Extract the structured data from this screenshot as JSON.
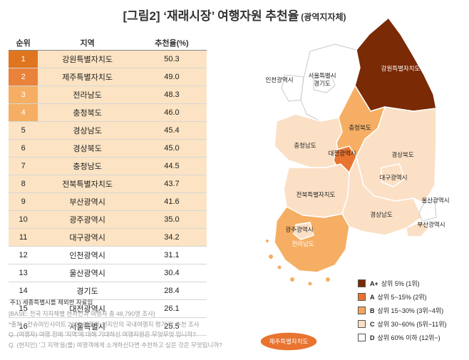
{
  "title": {
    "main": "[그림2] ‘재래시장’ 여행자원 추천율",
    "sub": "(광역지자체)"
  },
  "table": {
    "headers": [
      "순위",
      "지역",
      "추천율(%)"
    ],
    "rows": [
      {
        "rank": "1",
        "region": "강원특별자치도",
        "value": "50.3",
        "grade": "A+"
      },
      {
        "rank": "2",
        "region": "제주특별자치도",
        "value": "49.0",
        "grade": "A"
      },
      {
        "rank": "3",
        "region": "전라남도",
        "value": "48.3",
        "grade": "B"
      },
      {
        "rank": "4",
        "region": "충청북도",
        "value": "46.0",
        "grade": "B"
      },
      {
        "rank": "5",
        "region": "경상남도",
        "value": "45.4",
        "grade": "C"
      },
      {
        "rank": "6",
        "region": "경상북도",
        "value": "45.0",
        "grade": "C"
      },
      {
        "rank": "7",
        "region": "충청남도",
        "value": "44.5",
        "grade": "C"
      },
      {
        "rank": "8",
        "region": "전북특별자치도",
        "value": "43.7",
        "grade": "C"
      },
      {
        "rank": "9",
        "region": "부산광역시",
        "value": "41.6",
        "grade": "C"
      },
      {
        "rank": "10",
        "region": "광주광역시",
        "value": "35.0",
        "grade": "C"
      },
      {
        "rank": "11",
        "region": "대구광역시",
        "value": "34.2",
        "grade": "C"
      },
      {
        "rank": "12",
        "region": "인천광역시",
        "value": "31.1",
        "grade": "D"
      },
      {
        "rank": "13",
        "region": "울산광역시",
        "value": "30.4",
        "grade": "D"
      },
      {
        "rank": "14",
        "region": "경기도",
        "value": "28.4",
        "grade": "D"
      },
      {
        "rank": "15",
        "region": "대전광역시",
        "value": "26.1",
        "grade": "D"
      },
      {
        "rank": "16",
        "region": "서울특별시",
        "value": "25.5",
        "grade": "D"
      }
    ]
  },
  "footnote": "주1) 세종특별시를 제외한 자료임",
  "source_lines": [
    "[BASE: 전국 지자체별 현지인과 여행자 총 48,790명 조사]",
    "*출처 : 컨슈머인사이트 2025 여행자·현지인의 국내여행지 평가 및 추천 조사",
    "Q. (여행자) 여행 전에 '지역'에 대해 기대하신 여행자원은 무엇무엇 입니까?",
    "Q. (현지인) '그 지역'을(를) 여행객에게 소개하신다면 추천하고 싶은 것은 무엇입니까?"
  ],
  "legend": [
    {
      "grade": "A+",
      "label": "상위 5% (1위)",
      "color": "#7a2a05"
    },
    {
      "grade": "A",
      "label": "상위 5~15% (2위)",
      "color": "#e8742f"
    },
    {
      "grade": "B",
      "label": "상위 15~30% (3위~4위)",
      "color": "#f4a460"
    },
    {
      "grade": "C",
      "label": "상위 30~60% (5위~11위)",
      "color": "#fbe0c6"
    },
    {
      "grade": "D",
      "label": "상위 60% 이하 (12위~)",
      "color": "#ffffff"
    }
  ],
  "row_colors": {
    "A+": "#e0751f",
    "A": "#e9823a",
    "B": "#f5ae63",
    "C": "#fbe3c3",
    "D": "#ffffff"
  },
  "rank_text_colors": {
    "A+": "#ffffff",
    "A": "#ffffff",
    "B": "#ffffff",
    "C": "#222222",
    "D": "#222222"
  },
  "map_labels": {
    "seoul": "서울특별시",
    "gyeonggi": "경기도",
    "incheon": "인천광역시",
    "gangwon": "강원특별자치도",
    "chungbuk": "충청북도",
    "chungnam": "충청남도",
    "daejeon": "대전광역시",
    "gyeongbuk": "경상북도",
    "daegu": "대구광역시",
    "jeonbuk": "전북특별자치도",
    "ulsan": "울산광역시",
    "gyeongnam": "경상남도",
    "busan": "부산광역시",
    "gwangju": "광주광역시",
    "jeonnam": "전라남도",
    "jeju": "제주특별자치도"
  },
  "chart_data": {
    "type": "table",
    "title": "[그림2] ‘재래시장’ 여행자원 추천율 (광역지자체)",
    "columns": [
      "순위",
      "지역",
      "추천율(%)"
    ],
    "categories": [
      "강원특별자치도",
      "제주특별자치도",
      "전라남도",
      "충청북도",
      "경상남도",
      "경상북도",
      "충청남도",
      "전북특별자치도",
      "부산광역시",
      "광주광역시",
      "대구광역시",
      "인천광역시",
      "울산광역시",
      "경기도",
      "대전광역시",
      "서울특별시"
    ],
    "values": [
      50.3,
      49.0,
      48.3,
      46.0,
      45.4,
      45.0,
      44.5,
      43.7,
      41.6,
      35.0,
      34.2,
      31.1,
      30.4,
      28.4,
      26.1,
      25.5
    ],
    "grades": [
      "A+",
      "A",
      "B",
      "B",
      "C",
      "C",
      "C",
      "C",
      "C",
      "C",
      "C",
      "D",
      "D",
      "D",
      "D",
      "D"
    ]
  }
}
